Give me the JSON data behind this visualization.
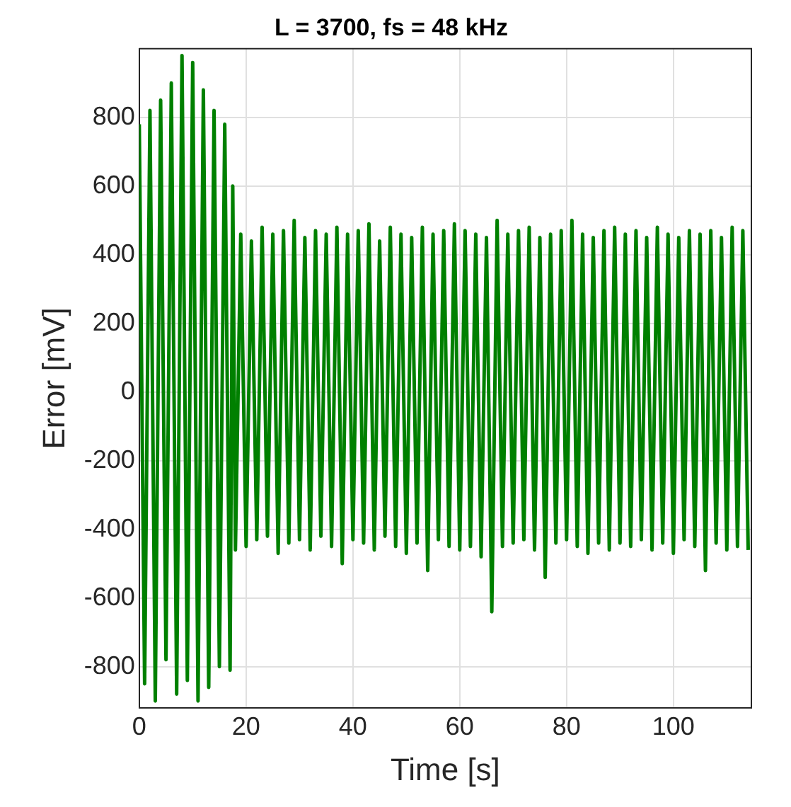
{
  "chart_data": {
    "type": "line",
    "title": "L = 3700, fs = 48 kHz",
    "xlabel": "Time [s]",
    "ylabel": "Error [mV]",
    "xlim": [
      0,
      114.6
    ],
    "xticks": [
      0,
      20,
      40,
      60,
      80,
      100
    ],
    "ylim": [
      -920,
      1000
    ],
    "yticks": [
      -800,
      -600,
      -400,
      -200,
      0,
      200,
      400,
      600,
      800
    ],
    "grid": true,
    "legend": false,
    "marker": "none",
    "line_style": "solid",
    "series": [
      {
        "color": "#008000",
        "x": [
          0,
          1,
          2,
          3,
          4,
          5,
          6,
          7,
          8,
          9,
          10,
          11,
          12,
          13,
          14,
          15,
          16,
          17,
          17.5,
          18,
          19,
          20,
          21,
          22,
          23,
          24,
          25,
          26,
          27,
          28,
          29,
          30,
          31,
          32,
          33,
          34,
          35,
          36,
          37,
          38,
          39,
          40,
          41,
          42,
          43,
          44,
          45,
          46,
          47,
          48,
          49,
          50,
          51,
          52,
          53,
          54,
          55,
          56,
          57,
          58,
          59,
          60,
          61,
          62,
          63,
          64,
          65,
          66,
          67,
          68,
          69,
          70,
          71,
          72,
          73,
          74,
          75,
          76,
          77,
          78,
          79,
          80,
          81,
          82,
          83,
          84,
          85,
          86,
          87,
          88,
          89,
          90,
          91,
          92,
          93,
          94,
          95,
          96,
          97,
          98,
          99,
          100,
          101,
          102,
          103,
          104,
          105,
          106,
          107,
          108,
          109,
          110,
          111,
          112,
          113,
          114
        ],
        "values": [
          780,
          -850,
          820,
          -900,
          850,
          -780,
          900,
          -880,
          980,
          -840,
          960,
          -900,
          880,
          -860,
          820,
          -800,
          780,
          -810,
          600,
          -460,
          460,
          -450,
          440,
          -430,
          480,
          -420,
          460,
          -470,
          470,
          -440,
          500,
          -430,
          450,
          -460,
          470,
          -420,
          460,
          -450,
          480,
          -500,
          460,
          -430,
          470,
          -440,
          490,
          -460,
          440,
          -420,
          480,
          -450,
          460,
          -470,
          450,
          -440,
          480,
          -520,
          460,
          -430,
          470,
          -450,
          490,
          -460,
          470,
          -450,
          460,
          -480,
          450,
          -640,
          500,
          -450,
          460,
          -440,
          470,
          -430,
          480,
          -460,
          450,
          -540,
          460,
          -440,
          470,
          -430,
          500,
          -450,
          460,
          -470,
          450,
          -440,
          470,
          -460,
          480,
          -440,
          460,
          -450,
          470,
          -430,
          450,
          -460,
          480,
          -440,
          460,
          -470,
          450,
          -430,
          470,
          -450,
          460,
          -520,
          470,
          -440,
          450,
          -460,
          480,
          -450,
          470,
          -460
        ]
      }
    ]
  }
}
